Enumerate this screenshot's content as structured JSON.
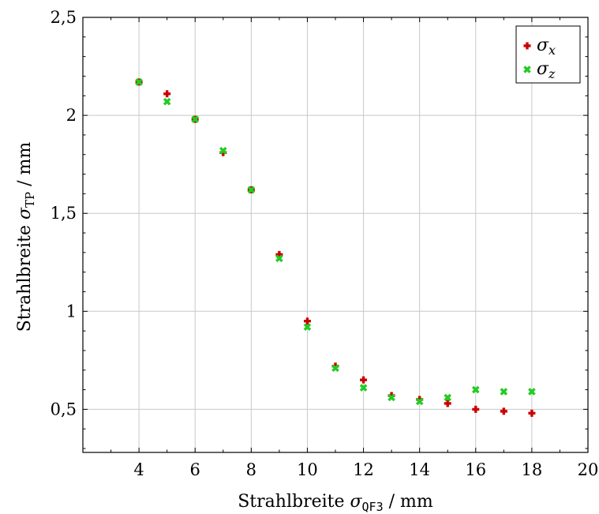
{
  "chart_data": {
    "type": "scatter",
    "xlim": [
      2,
      20
    ],
    "ylim": [
      0.28,
      2.5
    ],
    "x_ticks": [
      4,
      6,
      8,
      10,
      12,
      14,
      16,
      18,
      20
    ],
    "x_tick_labels": [
      "4",
      "6",
      "8",
      "10",
      "12",
      "14",
      "16",
      "18",
      "20"
    ],
    "y_ticks": [
      0.5,
      1,
      1.5,
      2,
      2.5
    ],
    "y_tick_labels": [
      "0,5",
      "1",
      "1,5",
      "2",
      "2,5"
    ],
    "xlabel": {
      "main": "Strahlbreite ",
      "symbol": "σ",
      "sub": "QF3",
      "unit": " / mm"
    },
    "ylabel": {
      "main": "Strahlbreite ",
      "symbol": "σ",
      "sub": "TP",
      "unit": " / mm"
    },
    "grid": true,
    "legend_position": "top-right",
    "series": [
      {
        "name": "σx",
        "legend_symbol": "σ",
        "legend_sub": "x",
        "marker": "plus",
        "color": "#cc0000",
        "x": [
          4,
          5,
          6,
          7,
          8,
          9,
          10,
          11,
          12,
          13,
          14,
          15,
          16,
          17,
          18
        ],
        "y": [
          2.17,
          2.11,
          1.98,
          1.81,
          1.62,
          1.29,
          0.95,
          0.72,
          0.65,
          0.57,
          0.55,
          0.53,
          0.5,
          0.49,
          0.48
        ]
      },
      {
        "name": "σz",
        "legend_symbol": "σ",
        "legend_sub": "z",
        "marker": "cross",
        "color": "#22cc22",
        "x": [
          4,
          5,
          6,
          7,
          8,
          9,
          10,
          11,
          12,
          13,
          14,
          15,
          16,
          17,
          18
        ],
        "y": [
          2.17,
          2.07,
          1.98,
          1.82,
          1.62,
          1.27,
          0.92,
          0.71,
          0.61,
          0.56,
          0.54,
          0.56,
          0.6,
          0.59,
          0.59
        ]
      }
    ]
  }
}
